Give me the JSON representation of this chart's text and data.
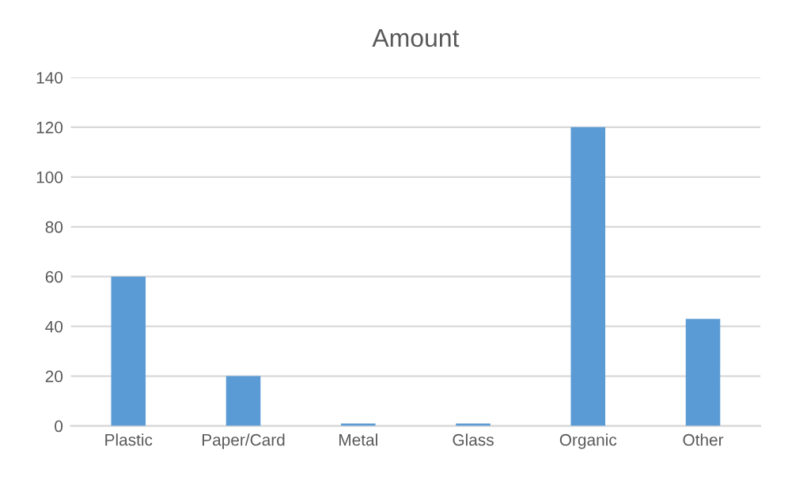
{
  "chart_data": {
    "type": "bar",
    "title": "Amount",
    "categories": [
      "Plastic",
      "Paper/Card",
      "Metal",
      "Glass",
      "Organic",
      "Other"
    ],
    "values": [
      60,
      20,
      1,
      1,
      120,
      43
    ],
    "color": "#5b9bd5",
    "ylim": [
      0,
      140
    ],
    "yticks": [
      0,
      20,
      40,
      60,
      80,
      100,
      120,
      140
    ],
    "grid": "y",
    "legend": false
  }
}
